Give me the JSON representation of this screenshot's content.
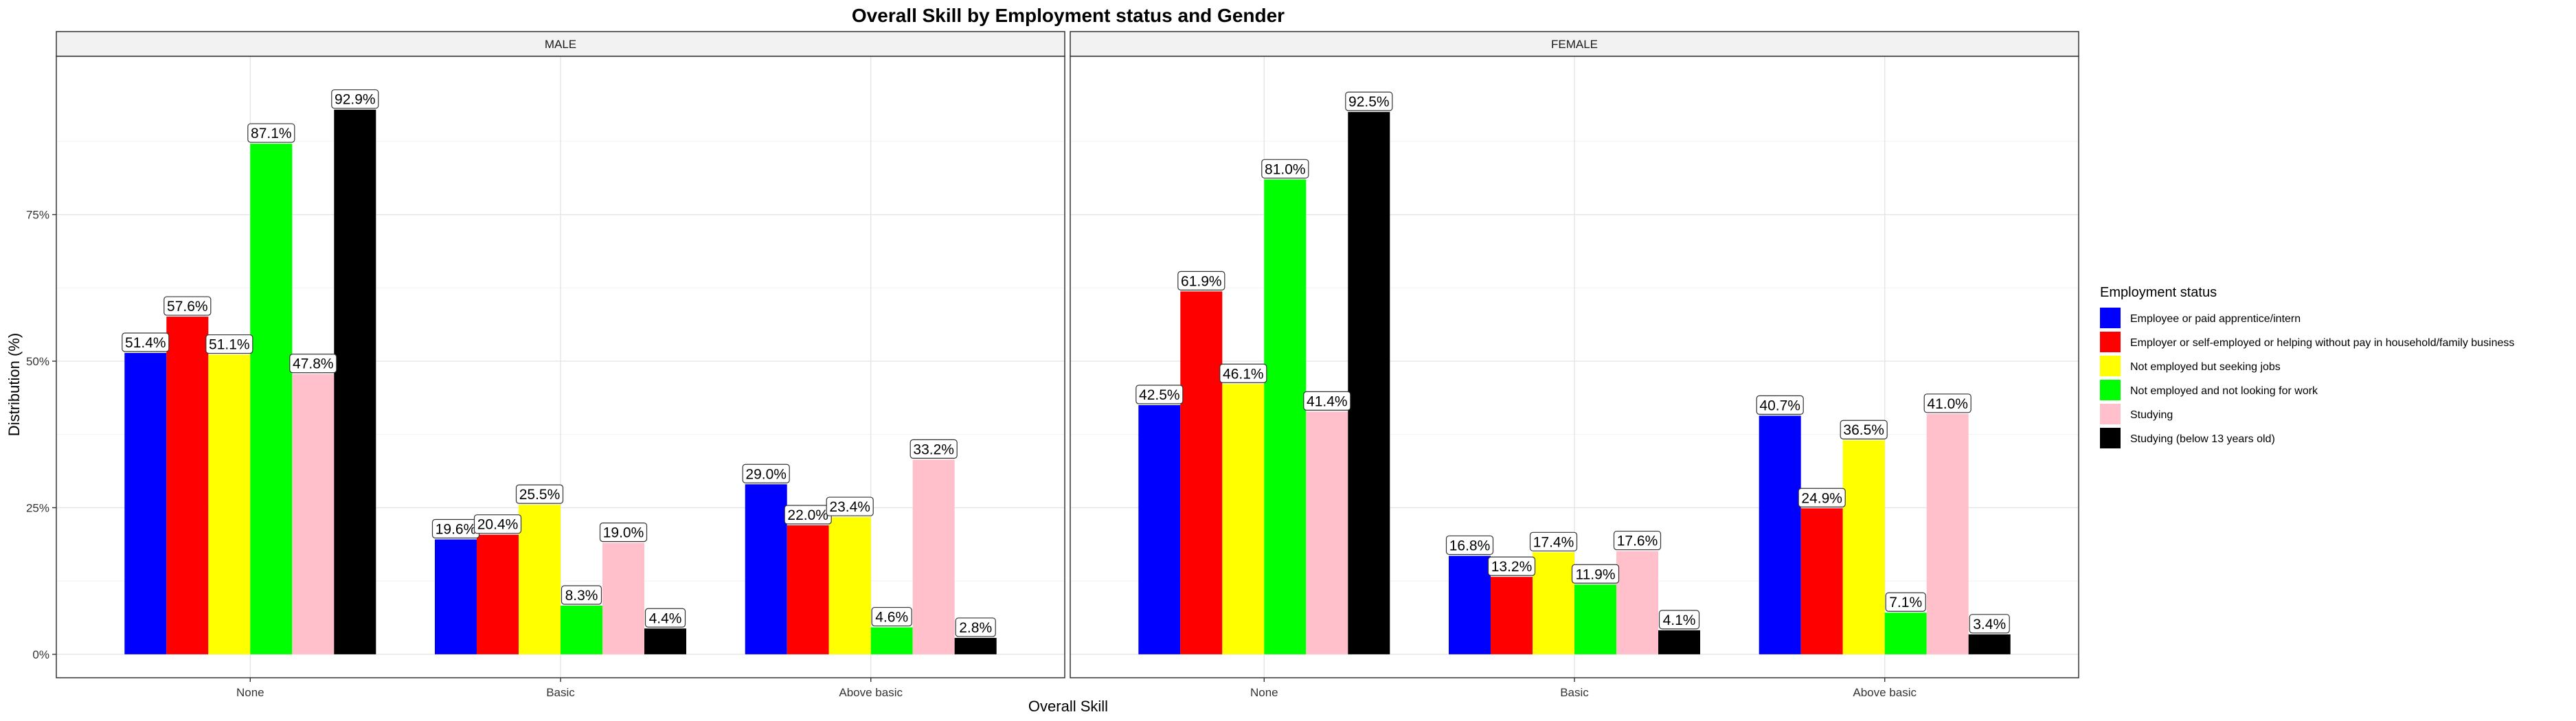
{
  "chart_data": {
    "type": "bar",
    "title": "Overall Skill by Employment status and Gender",
    "xlabel": "Overall Skill",
    "ylabel": "Distribution (%)",
    "ylim": [
      0,
      1
    ],
    "y_ticks": [
      "0%",
      "25%",
      "50%",
      "75%"
    ],
    "y_tick_values": [
      0,
      0.25,
      0.5,
      0.75
    ],
    "categories": [
      "None",
      "Basic",
      "Above basic"
    ],
    "grid": true,
    "legend": {
      "title": "Employment status",
      "placement": "right",
      "entries": [
        {
          "label": "Employee or paid apprentice/intern",
          "color": "#0000ff"
        },
        {
          "label": "Employer or self-employed or helping without pay in household/family business",
          "color": "#ff0000"
        },
        {
          "label": "Not employed but seeking jobs",
          "color": "#ffff00"
        },
        {
          "label": "Not employed and not looking for work",
          "color": "#00ff00"
        },
        {
          "label": "Studying",
          "color": "#ffc0cb"
        },
        {
          "label": "Studying (below 13 years old)",
          "color": "#000000"
        }
      ]
    },
    "panels": [
      {
        "name": "MALE",
        "series": [
          {
            "name": "Employee or paid apprentice/intern",
            "values": [
              0.514,
              0.196,
              0.29
            ],
            "labels": [
              "51.4%",
              "19.6%",
              "29.0%"
            ]
          },
          {
            "name": "Employer or self-employed or helping without pay in household/family business",
            "values": [
              0.576,
              0.204,
              0.22
            ],
            "labels": [
              "57.6%",
              "20.4%",
              "22.0%"
            ]
          },
          {
            "name": "Not employed but seeking jobs",
            "values": [
              0.511,
              0.255,
              0.234
            ],
            "labels": [
              "51.1%",
              "25.5%",
              "23.4%"
            ]
          },
          {
            "name": "Not employed and not looking for work",
            "values": [
              0.871,
              0.083,
              0.046
            ],
            "labels": [
              "87.1%",
              "8.3%",
              "4.6%"
            ]
          },
          {
            "name": "Studying",
            "values": [
              0.478,
              0.19,
              0.332
            ],
            "labels": [
              "47.8%",
              "19.0%",
              "33.2%"
            ]
          },
          {
            "name": "Studying (below 13 years old)",
            "values": [
              0.929,
              0.044,
              0.028
            ],
            "labels": [
              "92.9%",
              "4.4%",
              "2.8%"
            ]
          }
        ]
      },
      {
        "name": "FEMALE",
        "series": [
          {
            "name": "Employee or paid apprentice/intern",
            "values": [
              0.425,
              0.168,
              0.407
            ],
            "labels": [
              "42.5%",
              "16.8%",
              "40.7%"
            ]
          },
          {
            "name": "Employer or self-employed or helping without pay in household/family business",
            "values": [
              0.619,
              0.132,
              0.249
            ],
            "labels": [
              "61.9%",
              "13.2%",
              "24.9%"
            ]
          },
          {
            "name": "Not employed but seeking jobs",
            "values": [
              0.461,
              0.174,
              0.365
            ],
            "labels": [
              "46.1%",
              "17.4%",
              "36.5%"
            ]
          },
          {
            "name": "Not employed and not looking for work",
            "values": [
              0.81,
              0.119,
              0.071
            ],
            "labels": [
              "81.0%",
              "11.9%",
              "7.1%"
            ]
          },
          {
            "name": "Studying",
            "values": [
              0.414,
              0.176,
              0.41
            ],
            "labels": [
              "41.4%",
              "17.6%",
              "41.0%"
            ]
          },
          {
            "name": "Studying (below 13 years old)",
            "values": [
              0.925,
              0.041,
              0.034
            ],
            "labels": [
              "92.5%",
              "4.1%",
              "3.4%"
            ]
          }
        ]
      }
    ]
  }
}
